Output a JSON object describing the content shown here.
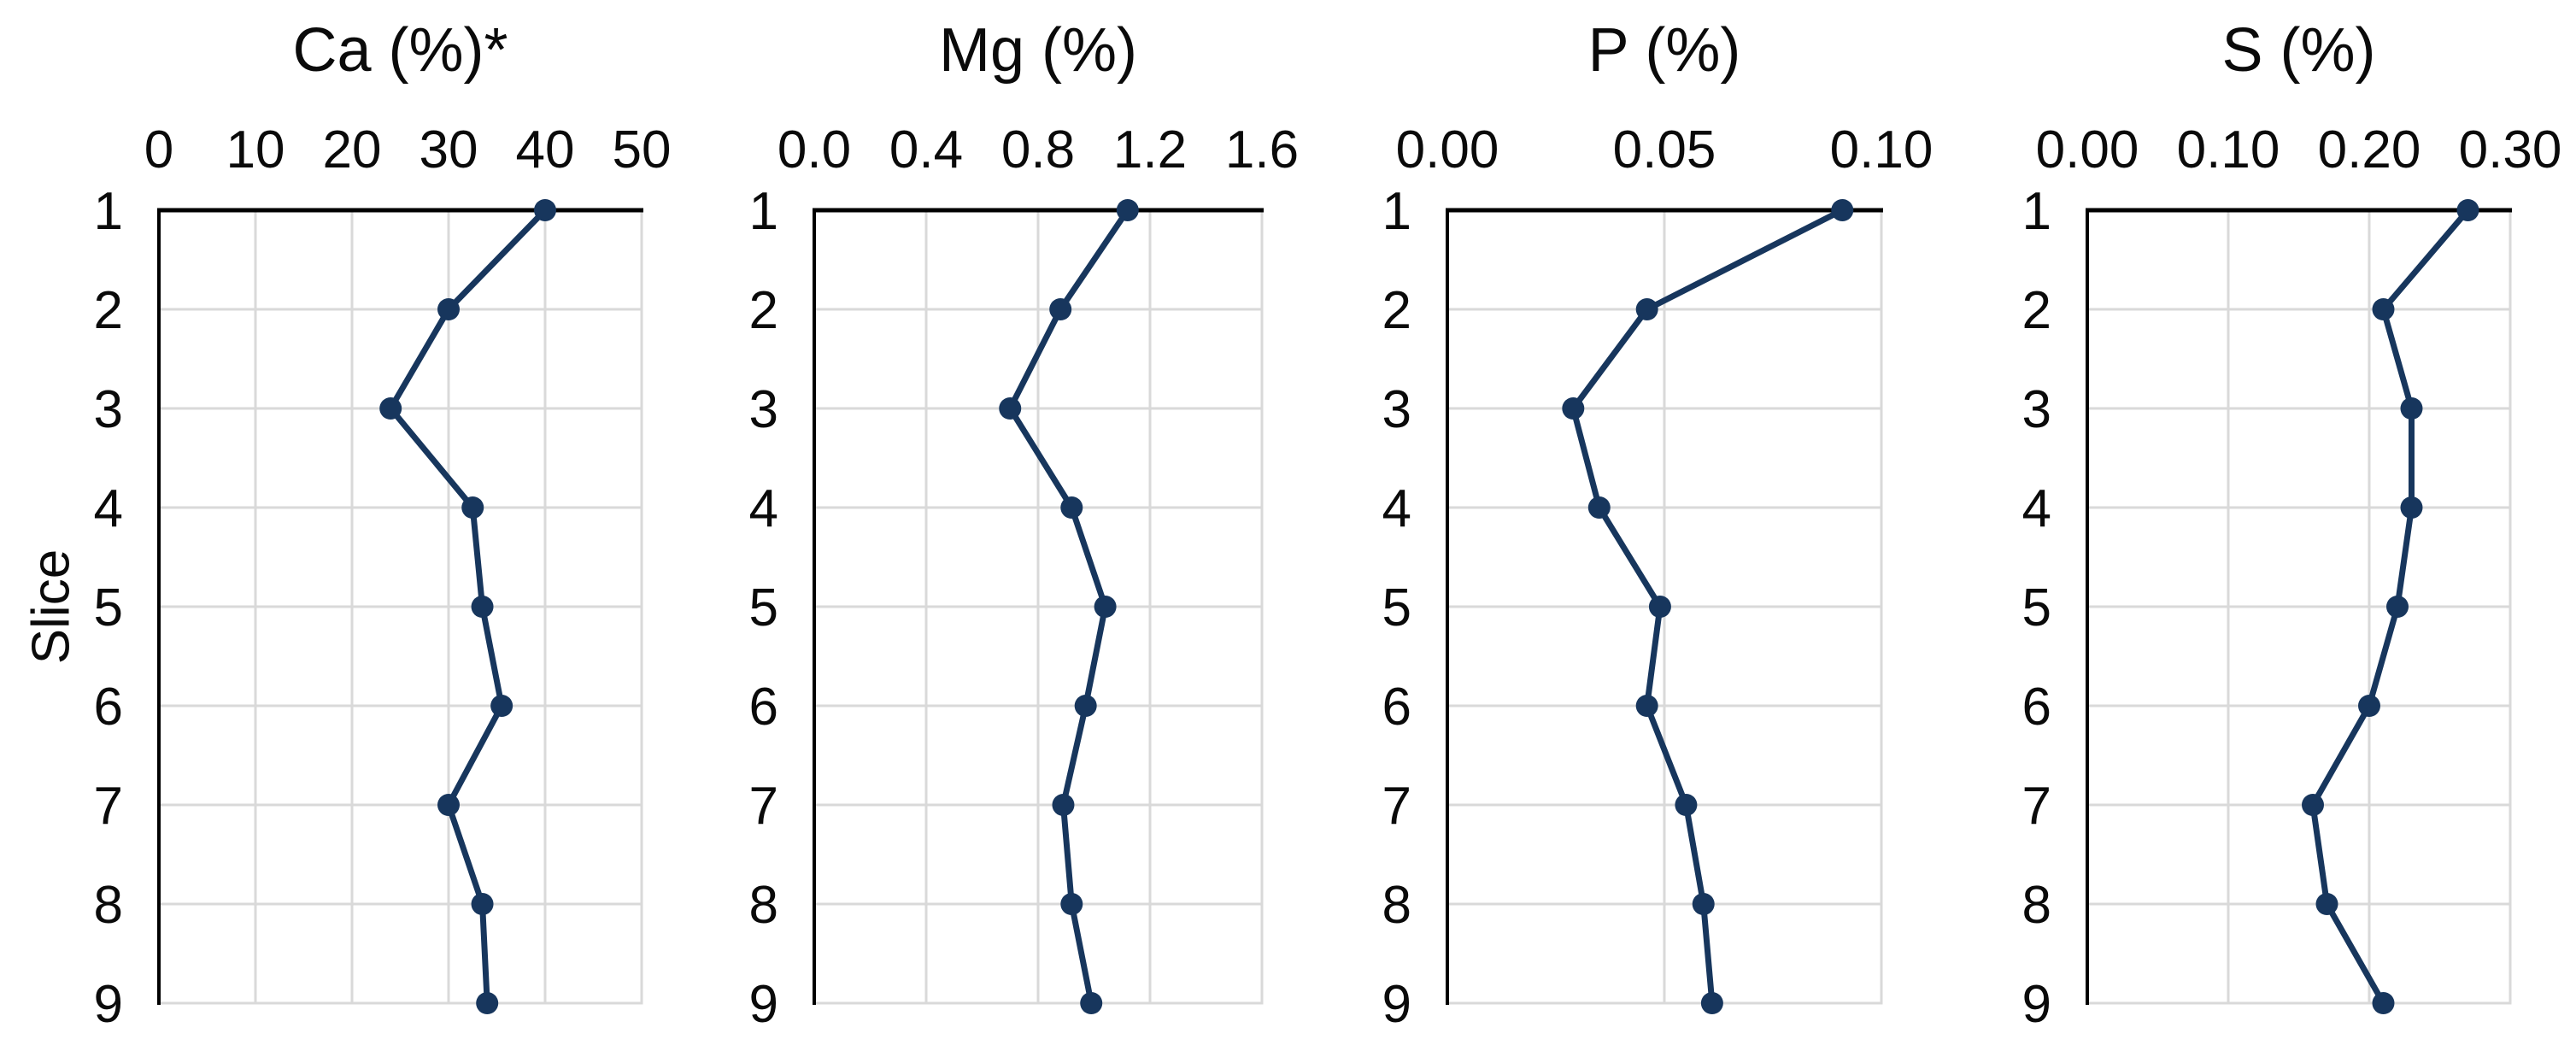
{
  "figure": {
    "background": "#ffffff",
    "series_color": "#17365d",
    "gridline_color": "#d9d9d9",
    "axis_color": "#000000",
    "text_color": "#0a0a0a",
    "ylabel": "Slice"
  },
  "chart_data": [
    {
      "id": "ca",
      "type": "line",
      "title": "Ca (%)*",
      "ylabel": "Slice",
      "x_axis_position": "top",
      "grid": true,
      "legend": false,
      "marker": "circle",
      "categories": [
        "1",
        "2",
        "3",
        "4",
        "5",
        "6",
        "7",
        "8",
        "9"
      ],
      "xlim": [
        0,
        50
      ],
      "xticks": [
        0,
        10,
        20,
        30,
        40,
        50
      ],
      "xtick_labels": [
        "0",
        "10",
        "20",
        "30",
        "40",
        "50"
      ],
      "values": [
        40,
        30,
        24,
        32.5,
        33.5,
        35.5,
        30,
        33.5,
        34
      ]
    },
    {
      "id": "mg",
      "type": "line",
      "title": "Mg (%)",
      "ylabel": "Slice",
      "x_axis_position": "top",
      "grid": true,
      "legend": false,
      "marker": "circle",
      "categories": [
        "1",
        "2",
        "3",
        "4",
        "5",
        "6",
        "7",
        "8",
        "9"
      ],
      "xlim": [
        0,
        1.6
      ],
      "xticks": [
        0,
        0.4,
        0.8,
        1.2,
        1.6
      ],
      "xtick_labels": [
        "0.0",
        "0.4",
        "0.8",
        "1.2",
        "1.6"
      ],
      "values": [
        1.12,
        0.88,
        0.7,
        0.92,
        1.04,
        0.97,
        0.89,
        0.92,
        0.99
      ]
    },
    {
      "id": "p",
      "type": "line",
      "title": "P (%)",
      "ylabel": "Slice",
      "x_axis_position": "top",
      "grid": true,
      "legend": false,
      "marker": "circle",
      "categories": [
        "1",
        "2",
        "3",
        "4",
        "5",
        "6",
        "7",
        "8",
        "9"
      ],
      "xlim": [
        0,
        0.1
      ],
      "xticks": [
        0,
        0.05,
        0.1
      ],
      "xtick_labels": [
        "0.00",
        "0.05",
        "0.10"
      ],
      "values": [
        0.091,
        0.046,
        0.029,
        0.035,
        0.049,
        0.046,
        0.055,
        0.059,
        0.061
      ]
    },
    {
      "id": "s",
      "type": "line",
      "title": "S (%)",
      "ylabel": "Slice",
      "x_axis_position": "top",
      "grid": true,
      "legend": false,
      "marker": "circle",
      "categories": [
        "1",
        "2",
        "3",
        "4",
        "5",
        "6",
        "7",
        "8",
        "9"
      ],
      "xlim": [
        0,
        0.3
      ],
      "xticks": [
        0,
        0.1,
        0.2,
        0.3
      ],
      "xtick_labels": [
        "0.00",
        "0.10",
        "0.20",
        "0.30"
      ],
      "values": [
        0.27,
        0.21,
        0.23,
        0.23,
        0.22,
        0.2,
        0.16,
        0.17,
        0.21
      ]
    }
  ]
}
